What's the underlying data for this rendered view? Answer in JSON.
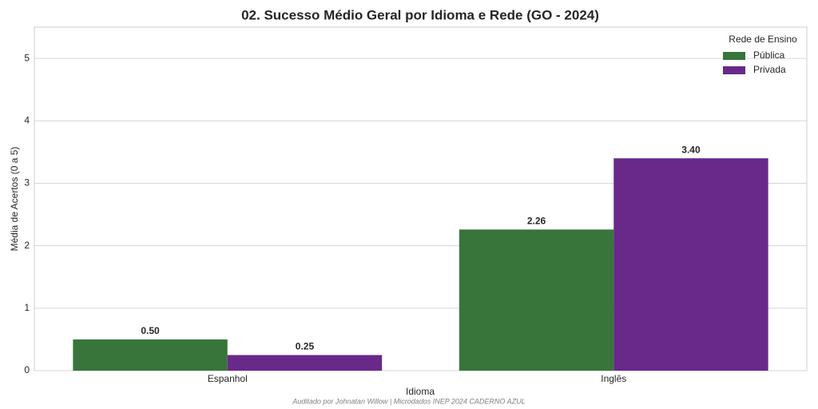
{
  "chart_data": {
    "type": "bar",
    "title": "02. Sucesso Médio Geral por Idioma e Rede (GO - 2024)",
    "xlabel": "Idioma",
    "ylabel": "Média de Acertos (0 a 5)",
    "legend_title": "Rede de Ensino",
    "legend": "upper right",
    "note": "Auditado por Johnatan Willow | Microdados INEP 2024 CADERNO AZUL",
    "categories": [
      "Espanhol",
      "Inglês"
    ],
    "series": [
      {
        "name": "Pública",
        "color": "#38753a",
        "values": [
          0.5,
          2.26
        ],
        "value_labels": [
          "0.50",
          "2.26"
        ]
      },
      {
        "name": "Privada",
        "color": "#68298a",
        "values": [
          0.25,
          3.4
        ],
        "value_labels": [
          "0.25",
          "3.40"
        ]
      }
    ],
    "ylim": [
      0,
      5.5
    ],
    "yticks": [
      0,
      1,
      2,
      3,
      4,
      5
    ],
    "grid": true
  }
}
